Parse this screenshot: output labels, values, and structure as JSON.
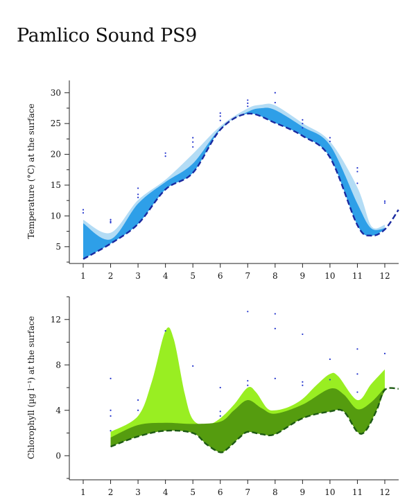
{
  "title": "Pamlico Sound PS9",
  "chart_data": [
    {
      "type": "area",
      "ylabel": "Temperature (°C) at the surface",
      "xlim": [
        1,
        12
      ],
      "ylim": [
        2.5,
        32
      ],
      "x_ticks": [
        1,
        2,
        3,
        4,
        5,
        6,
        7,
        8,
        9,
        10,
        11,
        12
      ],
      "y_ticks": [
        5,
        10,
        15,
        20,
        25,
        30
      ],
      "colors": {
        "light": "#b3dcf5",
        "mid": "#2e9fe8",
        "dashed": "#1a2aa0",
        "points": "#2233cc"
      },
      "series": [
        {
          "x": [
            1,
            2,
            3,
            4,
            5,
            6,
            7,
            7.5,
            8,
            9,
            10,
            11,
            11.5,
            12
          ],
          "values": [
            9.3,
            7.2,
            12.5,
            15.8,
            20,
            24.5,
            27.4,
            28.0,
            27.9,
            25,
            22,
            14.5,
            8.3,
            8.5
          ]
        },
        {
          "x": [
            1,
            2,
            3,
            4,
            5,
            6,
            7,
            7.5,
            8,
            9,
            10,
            11,
            11.5,
            12
          ],
          "values": [
            8.8,
            6.2,
            12,
            15.5,
            18.5,
            24.2,
            26.9,
            27.5,
            27.2,
            24.5,
            21.5,
            12,
            8.0,
            8.0
          ]
        },
        {
          "x": [
            1,
            2,
            3,
            4,
            5,
            6,
            7,
            8,
            9,
            10,
            11,
            11.5,
            12,
            12.5
          ],
          "values": [
            3,
            5.5,
            8.7,
            14.3,
            17,
            24,
            26.6,
            25.1,
            23,
            19.5,
            8.5,
            6.8,
            7.8,
            11
          ]
        }
      ],
      "points": [
        [
          1,
          11
        ],
        [
          1,
          10.5
        ],
        [
          2,
          9.4
        ],
        [
          2,
          8.9
        ],
        [
          2,
          9.1
        ],
        [
          3,
          14.5
        ],
        [
          3,
          13.5
        ],
        [
          3,
          13
        ],
        [
          4,
          20.2
        ],
        [
          4,
          19.7
        ],
        [
          5,
          22.7
        ],
        [
          5,
          22
        ],
        [
          5,
          21.2
        ],
        [
          6,
          26.7
        ],
        [
          6,
          26.2
        ],
        [
          6,
          25.5
        ],
        [
          7,
          28.8
        ],
        [
          7,
          28.3
        ],
        [
          7,
          27.8
        ],
        [
          8,
          30
        ],
        [
          8,
          28.4
        ],
        [
          9,
          25.6
        ],
        [
          9,
          25
        ],
        [
          9,
          24.3
        ],
        [
          10,
          22.7
        ],
        [
          10,
          22.1
        ],
        [
          11,
          17.8
        ],
        [
          11,
          17.2
        ],
        [
          11,
          15.3
        ],
        [
          12,
          12.4
        ],
        [
          12,
          12.1
        ]
      ]
    },
    {
      "type": "area",
      "ylabel": "Chlorophyll (µg l⁻¹) at the surface",
      "xlim": [
        1,
        12
      ],
      "ylim": [
        -2,
        14
      ],
      "x_ticks": [
        1,
        2,
        3,
        4,
        5,
        6,
        7,
        8,
        9,
        10,
        11,
        12
      ],
      "y_ticks": [
        0,
        4,
        8,
        12
      ],
      "colors": {
        "light": "#99ee22",
        "dark": "#559c0f",
        "dashed": "#1e5a14",
        "points": "#2233cc"
      },
      "series": [
        {
          "x": [
            2,
            3,
            3.5,
            4,
            4.3,
            4.7,
            5,
            5.5,
            6,
            6.5,
            7,
            7.3,
            7.7,
            8,
            8.5,
            9,
            9.5,
            10,
            10.3,
            11,
            11.5,
            12
          ],
          "values": [
            2.1,
            3.5,
            6.5,
            11.0,
            10.3,
            5.5,
            3.2,
            2.7,
            3.3,
            4.5,
            6.0,
            5.6,
            4.2,
            4.0,
            4.3,
            5.0,
            6.2,
            7.2,
            7.0,
            4.9,
            6.3,
            7.6
          ]
        },
        {
          "x": [
            2,
            3,
            4,
            5,
            6,
            6.5,
            7,
            7.5,
            8,
            9,
            10,
            10.5,
            11,
            11.5,
            12
          ],
          "values": [
            1.6,
            2.7,
            2.9,
            2.8,
            3.0,
            4.0,
            4.9,
            4.2,
            3.7,
            4.5,
            5.9,
            5.4,
            4.1,
            4.7,
            6.0
          ]
        },
        {
          "x": [
            2,
            3,
            4,
            5,
            5.5,
            6,
            6.3,
            6.7,
            7,
            7.5,
            8,
            9,
            10,
            10.5,
            11,
            11.3,
            11.7,
            12,
            12.5
          ],
          "values": [
            0.8,
            1.7,
            2.2,
            2.0,
            1.0,
            0.3,
            0.7,
            1.6,
            2.1,
            1.9,
            1.9,
            3.3,
            3.9,
            3.9,
            2.1,
            2.2,
            4.0,
            5.8,
            5.9
          ]
        }
      ],
      "points": [
        [
          2,
          6.8
        ],
        [
          2,
          4.0
        ],
        [
          2,
          3.5
        ],
        [
          2,
          2.2
        ],
        [
          3,
          4.9
        ],
        [
          3,
          4.0
        ],
        [
          4,
          11.0
        ],
        [
          5,
          7.9
        ],
        [
          6,
          6.0
        ],
        [
          6,
          3.9
        ],
        [
          6,
          3.5
        ],
        [
          7,
          12.7
        ],
        [
          7,
          6.6
        ],
        [
          7,
          6.2
        ],
        [
          8,
          12.5
        ],
        [
          8,
          11.2
        ],
        [
          8,
          6.8
        ],
        [
          9,
          10.7
        ],
        [
          9,
          6.5
        ],
        [
          9,
          6.2
        ],
        [
          10,
          8.5
        ],
        [
          10,
          6.7
        ],
        [
          11,
          9.4
        ],
        [
          11,
          7.2
        ],
        [
          11,
          5.6
        ],
        [
          12,
          9.0
        ]
      ]
    }
  ]
}
